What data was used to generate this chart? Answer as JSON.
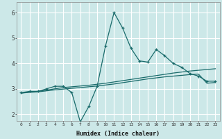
{
  "title": "",
  "xlabel": "Humidex (Indice chaleur)",
  "background_color": "#cce8e8",
  "grid_color": "#ffffff",
  "line_color": "#1a6b6b",
  "x_ticks": [
    0,
    1,
    2,
    3,
    4,
    5,
    6,
    7,
    8,
    9,
    10,
    11,
    12,
    13,
    14,
    15,
    16,
    17,
    18,
    19,
    20,
    21,
    22,
    23
  ],
  "y_ticks": [
    2,
    3,
    4,
    5,
    6
  ],
  "ylim": [
    1.75,
    6.4
  ],
  "xlim": [
    -0.5,
    23.5
  ],
  "line1_x": [
    0,
    1,
    2,
    3,
    4,
    5,
    6,
    7,
    8,
    9,
    10,
    11,
    12,
    13,
    14,
    15,
    16,
    17,
    18,
    19,
    20,
    21,
    22,
    23
  ],
  "line1_y": [
    2.85,
    2.9,
    2.9,
    3.0,
    3.1,
    3.1,
    2.85,
    1.7,
    2.3,
    3.1,
    4.7,
    6.0,
    5.4,
    4.6,
    4.1,
    4.05,
    4.55,
    4.3,
    4.0,
    3.85,
    3.6,
    3.5,
    3.3,
    3.3
  ],
  "line2_x": [
    0,
    1,
    2,
    3,
    4,
    5,
    6,
    7,
    8,
    9,
    10,
    11,
    12,
    13,
    14,
    15,
    16,
    17,
    18,
    19,
    20,
    21,
    22,
    23
  ],
  "line2_y": [
    2.83,
    2.88,
    2.9,
    2.95,
    3.0,
    3.05,
    3.08,
    3.11,
    3.14,
    3.18,
    3.22,
    3.27,
    3.32,
    3.37,
    3.42,
    3.47,
    3.52,
    3.57,
    3.62,
    3.66,
    3.7,
    3.73,
    3.76,
    3.79
  ],
  "line3_x": [
    0,
    1,
    2,
    3,
    4,
    5,
    6,
    7,
    8,
    9,
    10,
    11,
    12,
    13,
    14,
    15,
    16,
    17,
    18,
    19,
    20,
    21,
    22,
    23
  ],
  "line3_y": [
    2.83,
    2.86,
    2.88,
    2.92,
    2.96,
    2.99,
    3.02,
    3.05,
    3.08,
    3.11,
    3.15,
    3.19,
    3.24,
    3.29,
    3.34,
    3.39,
    3.43,
    3.47,
    3.5,
    3.53,
    3.56,
    3.58,
    3.22,
    3.25
  ]
}
